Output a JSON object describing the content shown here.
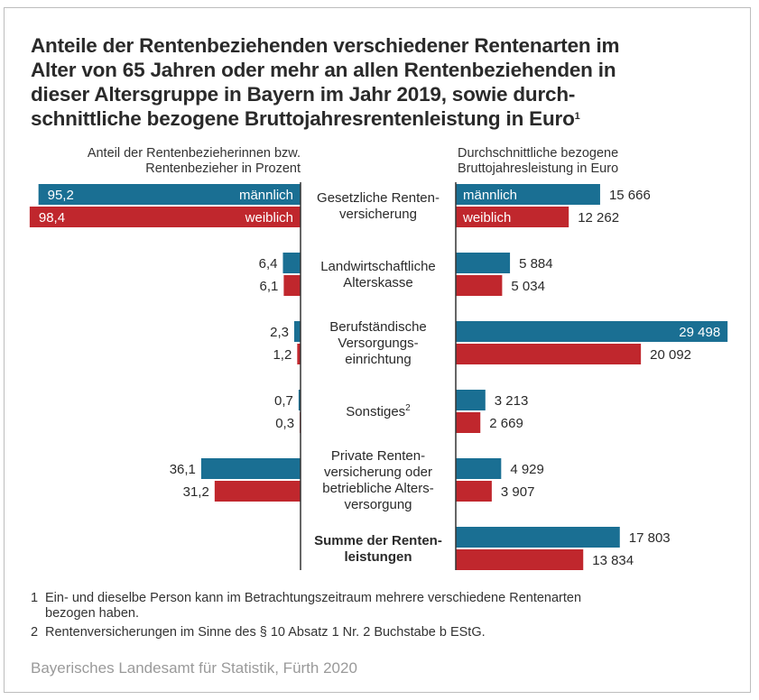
{
  "title": "Anteile der Rentenbeziehenden verschiedener Rentenarten im Alter von 65 Jahren oder mehr an allen Rentenbeziehenden in dieser Altersgruppe in Bayern im Jahr 2019, sowie durch-schnittliche bezogene Bruttojahresrentenleistung in Euro",
  "title_lines": [
    "Anteile der Rentenbeziehenden verschiedener Rentenarten im",
    "Alter von 65 Jahren oder mehr an allen Rentenbeziehenden in",
    "dieser Altersgruppe in Bayern im Jahr 2019, sowie durch-",
    "schnittliche bezogene Bruttojahresrentenleistung in Euro"
  ],
  "title_footnote_mark": "1",
  "left_header": [
    "Anteil der Rentenbezieherinnen bzw.",
    "Rentenbezieher in Prozent"
  ],
  "right_header": [
    "Durchschnittliche bezogene",
    "Bruttojahresleistung in Euro"
  ],
  "colors": {
    "male": "#1a6f93",
    "female": "#c0272d"
  },
  "footnotes": [
    {
      "num": "1",
      "lines": [
        "Ein- und dieselbe Person kann im Betrachtungszeitraum mehrere verschiedene Rentenarten",
        "bezogen haben."
      ]
    },
    {
      "num": "2",
      "lines": [
        "Rentenversicherungen im Sinne des § 10 Absatz 1 Nr. 2 Buchstabe b EStG."
      ]
    }
  ],
  "source": "Bayerisches Landesamt für Statistik, Fürth 2020",
  "chart_data": [
    {
      "type": "bar",
      "orientation": "horizontal",
      "direction": "leftward",
      "title": "Anteil der Rentenbezieherinnen bzw. Rentenbezieher in Prozent",
      "categories": [
        "Gesetzliche Rentenversicherung",
        "Landwirtschaftliche Alterskasse",
        "Berufständische Versorgungseinrichtung",
        "Sonstiges",
        "Private Rentenversicherung oder betriebliche Altersversorgung"
      ],
      "series": [
        {
          "name": "männlich",
          "values": [
            95.2,
            6.4,
            2.3,
            0.7,
            36.1
          ],
          "labels": [
            "95,2",
            "6,4",
            "2,3",
            "0,7",
            "36,1"
          ]
        },
        {
          "name": "weiblich",
          "values": [
            98.4,
            6.1,
            1.2,
            0.3,
            31.2
          ],
          "labels": [
            "98,4",
            "6,1",
            "1,2",
            "0,3",
            "31,2"
          ]
        }
      ],
      "xlim": [
        0,
        100
      ]
    },
    {
      "type": "bar",
      "orientation": "horizontal",
      "direction": "rightward",
      "title": "Durchschnittliche bezogene Bruttojahresleistung in Euro",
      "categories": [
        "Gesetzliche Rentenversicherung",
        "Landwirtschaftliche Alterskasse",
        "Berufständische Versorgungseinrichtung",
        "Sonstiges",
        "Private Rentenversicherung oder betriebliche Altersversorgung",
        "Summe der Rentenleistungen"
      ],
      "series": [
        {
          "name": "männlich",
          "values": [
            15666,
            5884,
            29498,
            3213,
            4929,
            17803
          ],
          "labels": [
            "15 666",
            "5 884",
            "29 498",
            "3 213",
            "4 929",
            "17 803"
          ]
        },
        {
          "name": "weiblich",
          "values": [
            12262,
            5034,
            20092,
            2669,
            3907,
            13834
          ],
          "labels": [
            "12 262",
            "5 034",
            "20 092",
            "2 669",
            "3 907",
            "13 834"
          ]
        }
      ],
      "xlim": [
        0,
        30000
      ]
    }
  ],
  "center_labels": [
    {
      "lines": [
        "Gesetzliche Renten-",
        "versicherung"
      ],
      "bold": false,
      "sup": ""
    },
    {
      "lines": [
        "Landwirtschaftliche",
        "Alterskasse"
      ],
      "bold": false,
      "sup": ""
    },
    {
      "lines": [
        "Berufständische",
        "Versorgungs-",
        "einrichtung"
      ],
      "bold": false,
      "sup": ""
    },
    {
      "lines": [
        "Sonstiges"
      ],
      "bold": false,
      "sup": "2"
    },
    {
      "lines": [
        "Private Renten-",
        "versicherung oder",
        "betriebliche Alters-",
        "versorgung"
      ],
      "bold": false,
      "sup": ""
    },
    {
      "lines": [
        "Summe der Renten-",
        "leistungen"
      ],
      "bold": true,
      "sup": ""
    }
  ],
  "legend": {
    "male": "männlich",
    "female": "weiblich"
  }
}
